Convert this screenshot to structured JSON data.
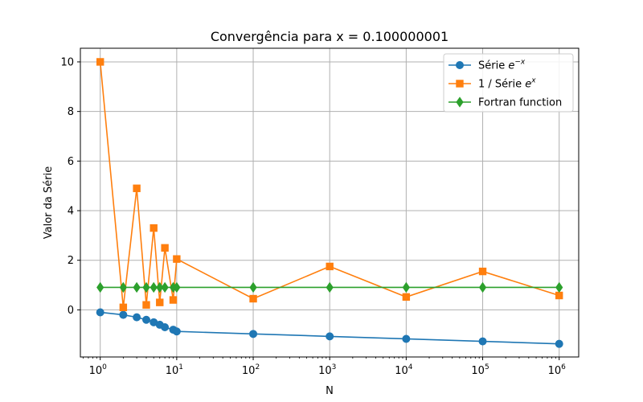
{
  "chart_data": {
    "type": "line",
    "title": "Convergência para x = 0.100000001",
    "xlabel": "N",
    "ylabel": "Valor da Série",
    "xscale": "log",
    "xlim": [
      0.55,
      1800000
    ],
    "ylim": [
      -1.9,
      10.55
    ],
    "yticks": [
      0,
      2,
      4,
      6,
      8,
      10
    ],
    "xticks": [
      {
        "base": "10",
        "exp": "0"
      },
      {
        "base": "10",
        "exp": "1"
      },
      {
        "base": "10",
        "exp": "2"
      },
      {
        "base": "10",
        "exp": "3"
      },
      {
        "base": "10",
        "exp": "4"
      },
      {
        "base": "10",
        "exp": "5"
      },
      {
        "base": "10",
        "exp": "6"
      }
    ],
    "grid": true,
    "legend_position": "top-right",
    "series": [
      {
        "name": "Série e^{-x}",
        "legend_text": "Série ",
        "legend_math": "e",
        "legend_sup": "−x",
        "color": "#1f77b4",
        "marker": "circle",
        "x": [
          1,
          2,
          3,
          4,
          5,
          6,
          7,
          9,
          10,
          100,
          1000,
          10000,
          100000,
          1000000
        ],
        "y": [
          -0.1,
          -0.2,
          -0.3,
          -0.4,
          -0.5,
          -0.6,
          -0.7,
          -0.8,
          -0.87,
          -0.97,
          -1.07,
          -1.17,
          -1.27,
          -1.37
        ]
      },
      {
        "name": "1 / Série e^{x}",
        "legend_text": "1 / Série ",
        "legend_math": "e",
        "legend_sup": "x",
        "color": "#ff7f0e",
        "marker": "square",
        "x": [
          1,
          2,
          3,
          4,
          5,
          6,
          7,
          9,
          10,
          100,
          1000,
          10000,
          100000,
          1000000
        ],
        "y": [
          10.0,
          0.1,
          4.9,
          0.2,
          3.3,
          0.3,
          2.5,
          0.4,
          2.05,
          0.45,
          1.75,
          0.52,
          1.55,
          0.58
        ]
      },
      {
        "name": "Fortran function",
        "legend_text": "Fortran function",
        "legend_math": "",
        "legend_sup": "",
        "color": "#2ca02c",
        "marker": "diamond",
        "x": [
          1,
          2,
          3,
          4,
          5,
          6,
          7,
          9,
          10,
          100,
          1000,
          10000,
          100000,
          1000000
        ],
        "y": [
          0.905,
          0.905,
          0.905,
          0.905,
          0.905,
          0.905,
          0.905,
          0.905,
          0.905,
          0.905,
          0.905,
          0.905,
          0.905,
          0.905
        ]
      }
    ]
  }
}
